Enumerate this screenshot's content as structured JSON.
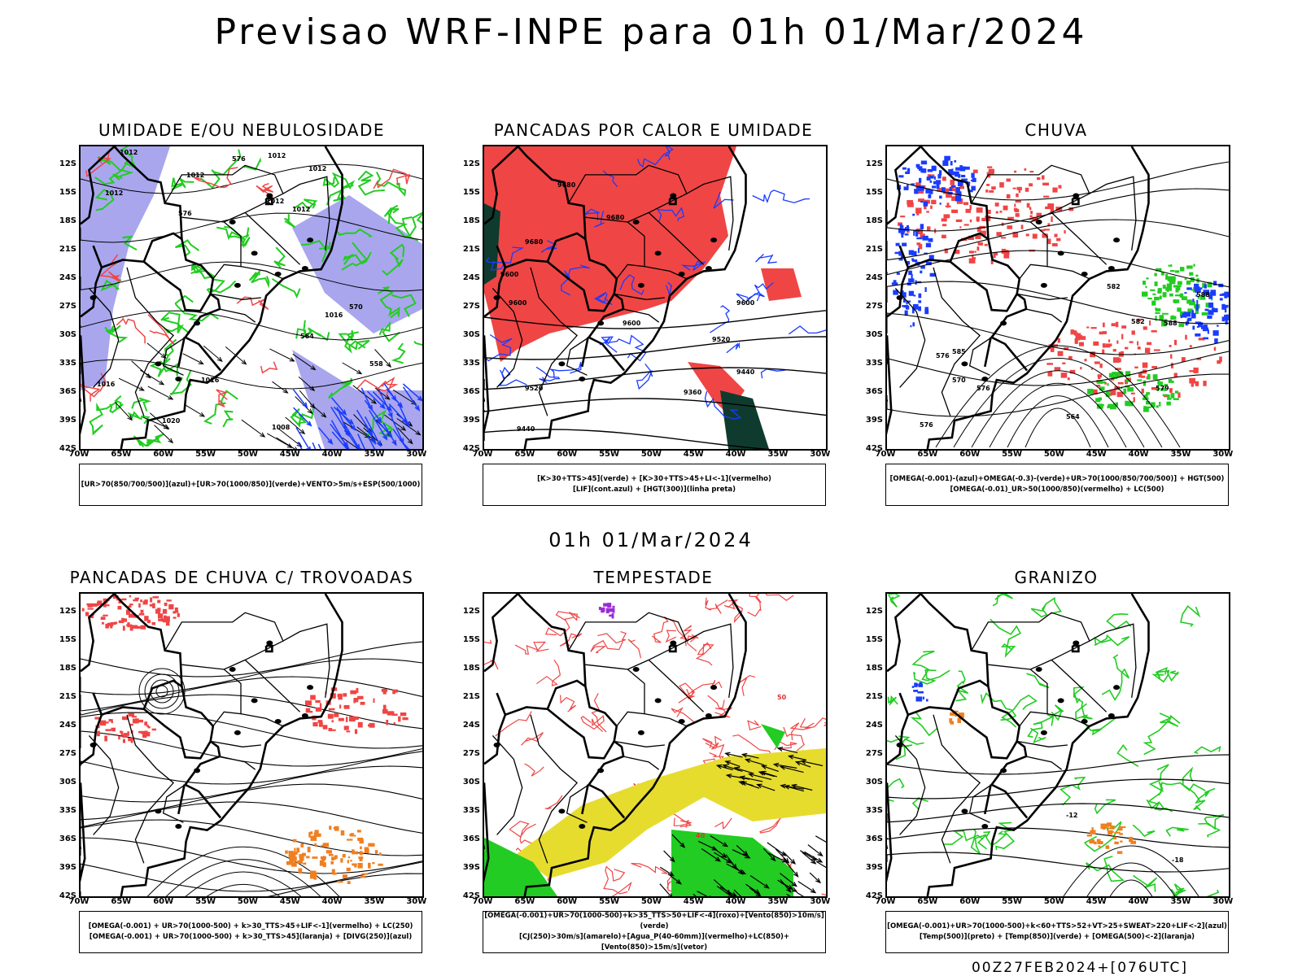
{
  "title": "Previsao WRF-INPE  para 01h 01/Mar/2024",
  "mid_date": "01h 01/Mar/2024",
  "footer": "00Z27FEB2024+[076UTC]",
  "lat_labels": [
    "12S",
    "15S",
    "18S",
    "21S",
    "24S",
    "27S",
    "30S",
    "33S",
    "36S",
    "39S",
    "42S"
  ],
  "lon_labels": [
    "70W",
    "65W",
    "60W",
    "55W",
    "50W",
    "45W",
    "40W",
    "35W",
    "30W"
  ],
  "colors": {
    "red": "#f04545",
    "green": "#22cc22",
    "blue": "#1a3cff",
    "lavender": "#a9a6ee",
    "yellow": "#e6dc2e",
    "orange": "#f07f20",
    "darkgreen": "#0f3b2e",
    "purple": "#9b2cd6"
  },
  "panels": [
    {
      "title": "UMIDADE E/OU NEBULOSIDADE",
      "legend": [
        "[UR>70(850/700/500)](azul)+[UR>70(1000/850)](verde)+VENTO>5m/s+ESP(500/1000)"
      ],
      "contour_labels": [
        "1012",
        "1012",
        "1012",
        "1012",
        "1012",
        "1012",
        "1012",
        "1016",
        "1016",
        "1016",
        "1020",
        "1008",
        "576",
        "576",
        "570",
        "564",
        "558"
      ]
    },
    {
      "title": "PANCADAS POR CALOR E UMIDADE",
      "legend": [
        "[K>30+TTS>45](verde) + [K>30+TTS>45+LI<-1](vermelho)",
        "[LIF](cont.azul) + [HGT(300)](linha preta)"
      ],
      "contour_labels": [
        "9680",
        "9680",
        "9680",
        "9600",
        "9600",
        "9600",
        "9600",
        "9520",
        "9520",
        "9440",
        "9440",
        "9360"
      ]
    },
    {
      "title": "CHUVA",
      "legend": [
        "[OMEGA(-0.001)-(azul)+OMEGA(-0.3)-(verde)+UR>70(1000/850/700/500)] + HGT(500)",
        "[OMEGA(-0.01)_UR>50(1000/850)(vermelho) + LC(500)"
      ],
      "contour_labels": [
        "588",
        "588",
        "582",
        "576",
        "576",
        "570",
        "585",
        "582",
        "579",
        "576",
        "564"
      ]
    },
    {
      "title": "PANCADAS DE CHUVA C/ TROVOADAS",
      "legend": [
        "[OMEGA(-0.001) + UR>70(1000-500) + k>30_TTS>45+LIF<-1](vermelho) + LC(250)",
        "[OMEGA(-0.001) + UR>70(1000-500) + k>30_TTS>45](laranja) + [DIVG(250)](azul)"
      ],
      "contour_labels": []
    },
    {
      "title": "TEMPESTADE",
      "legend": [
        "[OMEGA(-0.001)+UR>70(1000-500)+k>35_TTS>50+LIF<-4](roxo)+[Vento(850)>10m/s](verde)",
        "[CJ(250)>30m/s](amarelo)+[Agua_P(40-60mm)](vermelho)+LC(850)+[Vento(850)>15m/s](vetor)"
      ],
      "contour_labels": [
        "40",
        "50"
      ]
    },
    {
      "title": "GRANIZO",
      "legend": [
        "[OMEGA(-0.001)+UR>70(1000-500)+k<60+TTS>52+VT>25+SWEAT>220+LIF<-2](azul)",
        "[Temp(500)](preto) + [Temp(850)](verde) + [OMEGA(500)<-2](laranja)"
      ],
      "contour_labels": [
        "-12",
        "-18"
      ]
    }
  ]
}
